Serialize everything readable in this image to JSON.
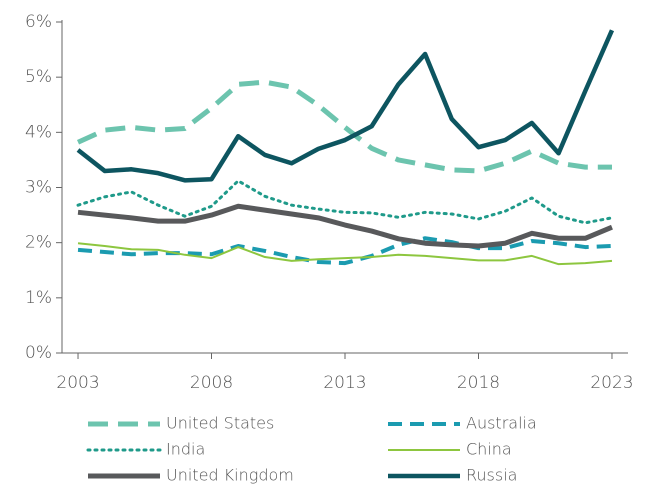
{
  "chart_data": {
    "type": "line",
    "x": [
      2003,
      2004,
      2005,
      2006,
      2007,
      2008,
      2009,
      2010,
      2011,
      2012,
      2013,
      2014,
      2015,
      2016,
      2017,
      2018,
      2019,
      2020,
      2021,
      2022,
      2023
    ],
    "xlim": [
      2002.4,
      2023.6
    ],
    "xticks": [
      2003,
      2008,
      2013,
      2018,
      2023
    ],
    "ylim": [
      0,
      6
    ],
    "yticks": [
      {
        "value": 0,
        "label": "0%"
      },
      {
        "value": 1,
        "label": "1%"
      },
      {
        "value": 2,
        "label": "2%"
      },
      {
        "value": 3,
        "label": "3%"
      },
      {
        "value": 4,
        "label": "4%"
      },
      {
        "value": 5,
        "label": "5%"
      },
      {
        "value": 6,
        "label": "6%"
      }
    ],
    "series": [
      {
        "name": "United States",
        "color": "#6cc4ae",
        "values": [
          3.82,
          4.04,
          4.09,
          4.04,
          4.07,
          4.44,
          4.87,
          4.91,
          4.82,
          4.49,
          4.09,
          3.71,
          3.5,
          3.41,
          3.32,
          3.3,
          3.44,
          3.66,
          3.44,
          3.37,
          3.37
        ]
      },
      {
        "name": "Australia",
        "color": "#1b9bb0",
        "values": [
          1.87,
          1.83,
          1.79,
          1.81,
          1.81,
          1.79,
          1.94,
          1.85,
          1.74,
          1.65,
          1.63,
          1.76,
          1.96,
          2.08,
          2.01,
          1.9,
          1.9,
          2.03,
          1.99,
          1.92,
          1.94
        ]
      },
      {
        "name": "India",
        "color": "#1f9a8a",
        "values": [
          2.68,
          2.83,
          2.92,
          2.68,
          2.48,
          2.66,
          3.12,
          2.84,
          2.68,
          2.61,
          2.55,
          2.54,
          2.46,
          2.55,
          2.52,
          2.43,
          2.57,
          2.81,
          2.48,
          2.36,
          2.45
        ]
      },
      {
        "name": "China",
        "color": "#8dc63f",
        "values": [
          1.99,
          1.94,
          1.88,
          1.87,
          1.78,
          1.72,
          1.92,
          1.74,
          1.67,
          1.7,
          1.72,
          1.74,
          1.78,
          1.76,
          1.72,
          1.68,
          1.68,
          1.76,
          1.61,
          1.63,
          1.67
        ]
      },
      {
        "name": "United Kingdom",
        "color": "#58595b",
        "values": [
          2.55,
          2.5,
          2.45,
          2.39,
          2.39,
          2.5,
          2.66,
          2.59,
          2.52,
          2.45,
          2.32,
          2.21,
          2.07,
          1.99,
          1.96,
          1.94,
          1.99,
          2.17,
          2.08,
          2.08,
          2.28
        ]
      },
      {
        "name": "Russia",
        "color": "#0d5560",
        "values": [
          3.68,
          3.3,
          3.33,
          3.26,
          3.13,
          3.15,
          3.93,
          3.59,
          3.44,
          3.7,
          3.86,
          4.11,
          4.87,
          5.42,
          4.24,
          3.73,
          3.86,
          4.17,
          3.62,
          4.75,
          5.85
        ]
      }
    ]
  }
}
